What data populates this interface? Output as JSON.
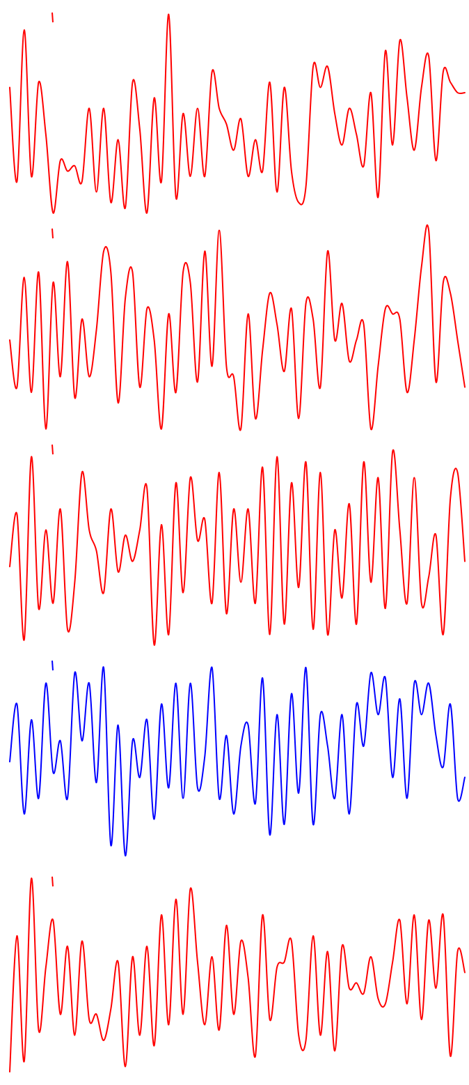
{
  "chart_data": {
    "type": "line",
    "description_colors": {
      "default": "#ff0000",
      "highlight": "#0000ff"
    },
    "x_range": [
      0,
      64
    ],
    "y_range": [
      -1,
      1
    ],
    "series": [
      {
        "color": "#ff0000",
        "values": [
          0.25,
          -0.65,
          0.8,
          -0.6,
          0.3,
          -0.2,
          -0.95,
          -0.45,
          -0.55,
          -0.5,
          -0.65,
          0.05,
          -0.75,
          0.05,
          -0.85,
          -0.25,
          -0.9,
          0.3,
          -0.15,
          -0.95,
          0.15,
          -0.65,
          0.95,
          -0.8,
          0.0,
          -0.6,
          0.05,
          -0.6,
          0.4,
          0.05,
          -0.1,
          -0.35,
          -0.05,
          -0.6,
          -0.25,
          -0.55,
          0.3,
          -0.75,
          0.25,
          -0.55,
          -0.85,
          -0.7,
          0.45,
          0.25,
          0.45,
          0.0,
          -0.3,
          0.05,
          -0.2,
          -0.5,
          0.2,
          -0.8,
          0.6,
          -0.3,
          0.7,
          0.15,
          -0.35,
          0.25,
          0.55,
          -0.45,
          0.4,
          0.3,
          0.2,
          0.2
        ],
        "baseline_marker": true
      },
      {
        "color": "#ff0000",
        "values": [
          -0.1,
          -0.55,
          0.5,
          -0.6,
          0.55,
          -0.95,
          0.45,
          -0.45,
          0.65,
          -0.65,
          0.1,
          -0.45,
          0.0,
          0.75,
          0.55,
          -0.7,
          0.3,
          0.55,
          -0.55,
          0.2,
          -0.1,
          -0.95,
          0.15,
          -0.6,
          0.55,
          0.45,
          -0.5,
          0.75,
          -0.35,
          0.95,
          -0.35,
          -0.45,
          -0.95,
          0.15,
          -0.85,
          -0.2,
          0.35,
          0.05,
          -0.4,
          0.2,
          -0.85,
          0.25,
          0.1,
          -0.55,
          0.75,
          -0.1,
          0.25,
          -0.3,
          -0.1,
          0.05,
          -0.95,
          -0.35,
          0.2,
          0.15,
          0.1,
          -0.6,
          -0.1,
          0.6,
          0.95,
          -0.5,
          0.45,
          0.35,
          -0.1,
          -0.55
        ],
        "baseline_marker": true
      },
      {
        "color": "#ff0000",
        "values": [
          -0.2,
          0.3,
          -0.9,
          0.85,
          -0.6,
          0.15,
          -0.55,
          0.35,
          -0.8,
          -0.35,
          0.7,
          0.15,
          -0.05,
          -0.45,
          0.35,
          -0.25,
          0.1,
          -0.15,
          0.15,
          0.55,
          -0.95,
          0.2,
          -0.85,
          0.6,
          -0.45,
          0.65,
          0.05,
          0.25,
          -0.55,
          0.7,
          -0.65,
          0.35,
          -0.35,
          0.35,
          -0.55,
          0.75,
          -0.85,
          0.85,
          -0.75,
          0.6,
          -0.4,
          0.8,
          -0.8,
          0.7,
          -0.85,
          0.15,
          -0.5,
          0.4,
          -0.75,
          0.8,
          -0.35,
          0.65,
          -0.6,
          0.9,
          0.15,
          -0.55,
          0.65,
          -0.55,
          -0.3,
          0.1,
          -0.85,
          0.45,
          0.7,
          -0.15
        ],
        "baseline_marker": true
      },
      {
        "color": "#0000ff",
        "values": [
          0.0,
          0.55,
          -0.5,
          0.4,
          -0.35,
          0.75,
          -0.1,
          0.2,
          -0.35,
          0.85,
          0.2,
          0.75,
          -0.2,
          0.9,
          -0.8,
          0.35,
          -0.9,
          0.2,
          -0.15,
          0.4,
          -0.55,
          0.55,
          -0.25,
          0.75,
          -0.35,
          0.75,
          -0.25,
          0.05,
          0.9,
          -0.35,
          0.25,
          -0.5,
          0.15,
          0.35,
          -0.4,
          0.8,
          -0.7,
          0.45,
          -0.6,
          0.65,
          -0.3,
          0.9,
          -0.6,
          0.45,
          0.15,
          -0.35,
          0.45,
          -0.5,
          0.55,
          0.15,
          0.85,
          0.45,
          0.8,
          -0.15,
          0.6,
          -0.35,
          0.75,
          0.45,
          0.75,
          0.25,
          -0.05,
          0.55,
          -0.35,
          -0.15
        ],
        "baseline_marker": true
      },
      {
        "color": "#ff0000",
        "values": [
          -0.9,
          0.4,
          -0.8,
          0.95,
          -0.5,
          0.1,
          0.55,
          -0.35,
          0.3,
          -0.55,
          0.35,
          -0.4,
          -0.35,
          -0.6,
          -0.3,
          0.15,
          -0.85,
          0.2,
          -0.55,
          0.3,
          -0.65,
          0.6,
          -0.45,
          0.75,
          -0.35,
          0.85,
          0.15,
          -0.45,
          0.2,
          -0.5,
          0.5,
          -0.35,
          0.35,
          0.0,
          -0.75,
          0.6,
          -0.4,
          0.1,
          0.15,
          0.35,
          -0.55,
          -0.6,
          0.4,
          -0.55,
          0.25,
          -0.7,
          0.3,
          -0.1,
          -0.05,
          -0.15,
          0.2,
          -0.2,
          -0.25,
          0.15,
          0.55,
          -0.25,
          0.6,
          -0.4,
          0.55,
          -0.1,
          0.6,
          -0.75,
          0.25,
          0.05
        ],
        "baseline_marker": true
      }
    ]
  }
}
